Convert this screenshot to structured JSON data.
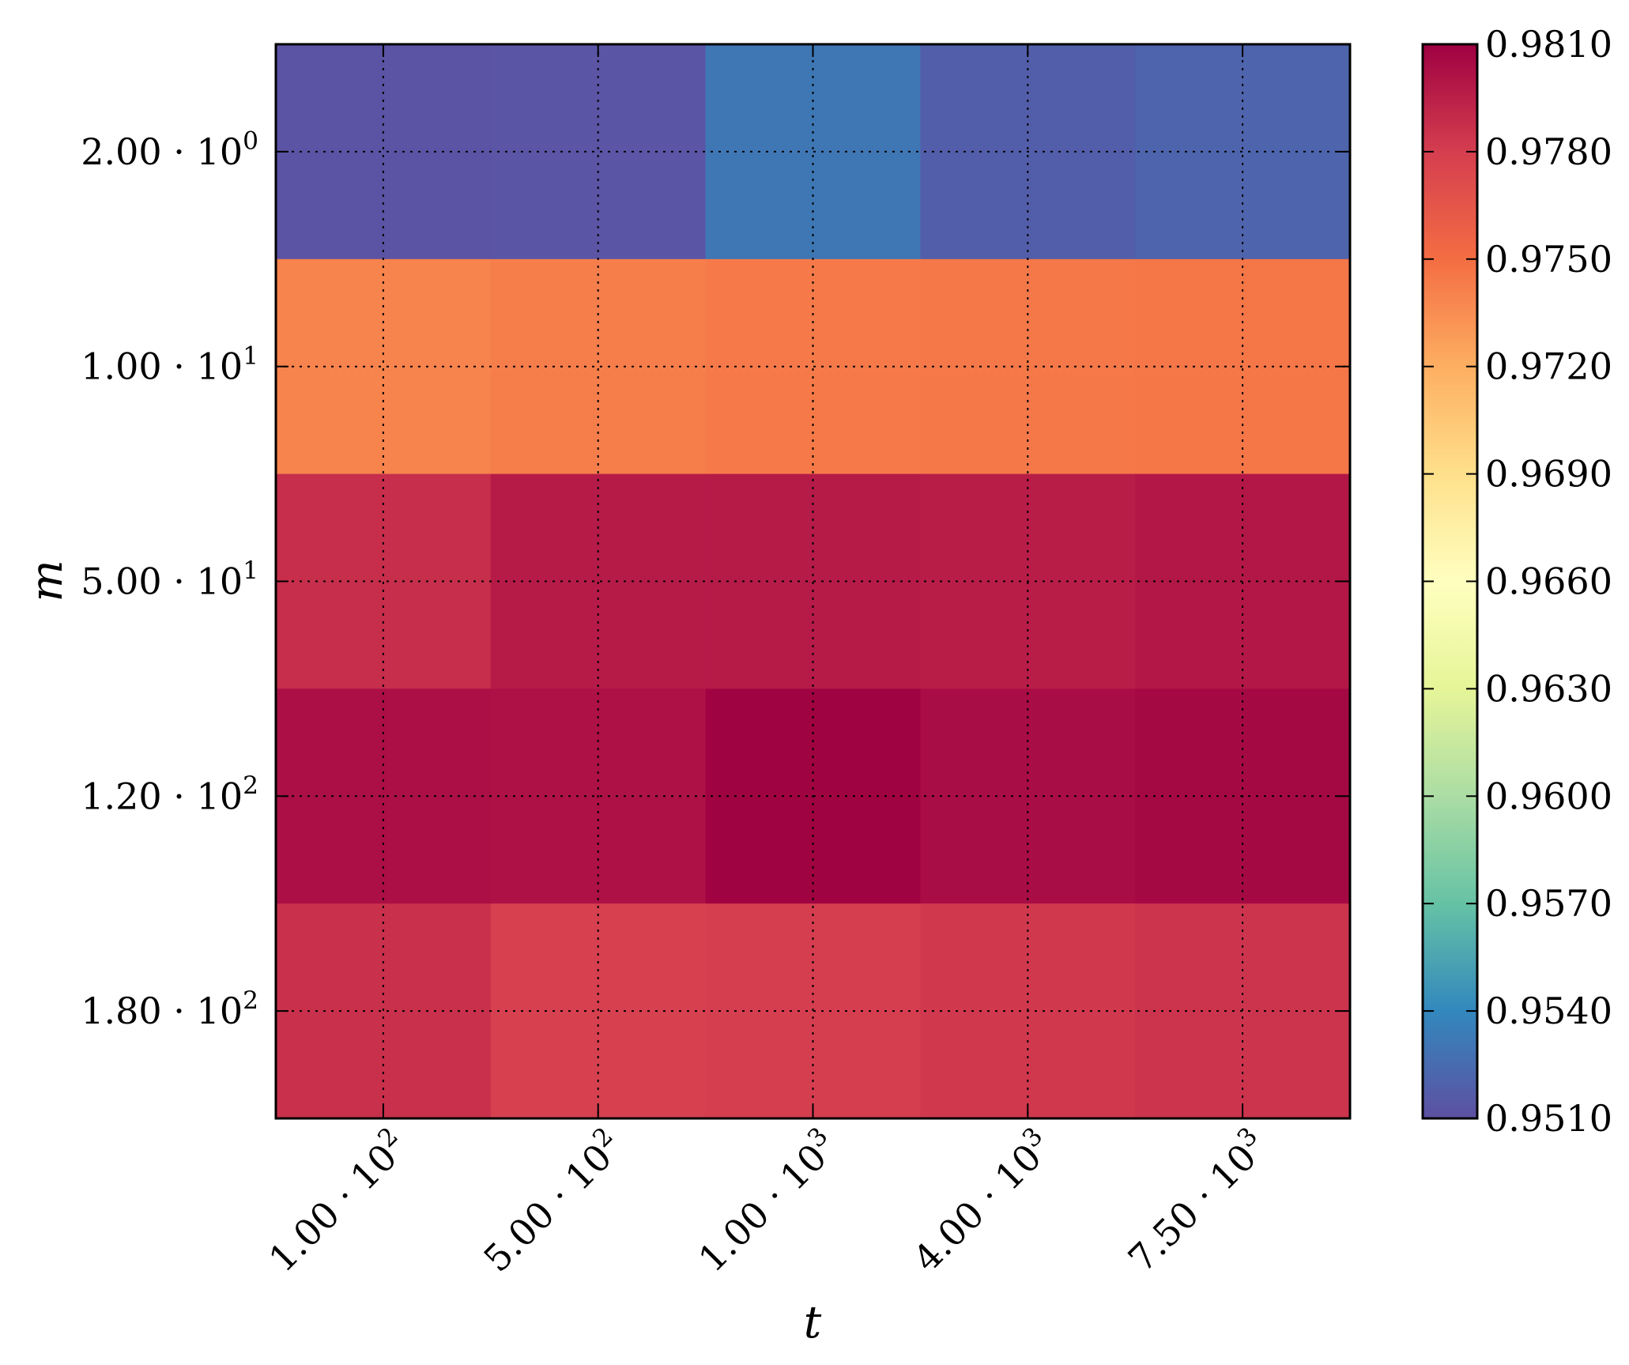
{
  "chart_data": {
    "type": "heatmap",
    "xlabel": "t",
    "ylabel": "m",
    "x_categories": [
      {
        "mantissa": "1.00",
        "exponent": "2"
      },
      {
        "mantissa": "5.00",
        "exponent": "2"
      },
      {
        "mantissa": "1.00",
        "exponent": "3"
      },
      {
        "mantissa": "4.00",
        "exponent": "3"
      },
      {
        "mantissa": "7.50",
        "exponent": "3"
      }
    ],
    "y_categories": [
      {
        "mantissa": "2.00",
        "exponent": "0"
      },
      {
        "mantissa": "1.00",
        "exponent": "1"
      },
      {
        "mantissa": "5.00",
        "exponent": "1"
      },
      {
        "mantissa": "1.20",
        "exponent": "2"
      },
      {
        "mantissa": "1.80",
        "exponent": "2"
      }
    ],
    "values": [
      [
        0.9512,
        0.9513,
        0.9531,
        0.9518,
        0.9521
      ],
      [
        0.974,
        0.9742,
        0.9744,
        0.9745,
        0.9746
      ],
      [
        0.9788,
        0.9797,
        0.9797,
        0.9796,
        0.9799
      ],
      [
        0.9803,
        0.9802,
        0.9809,
        0.9804,
        0.9806
      ],
      [
        0.9787,
        0.9779,
        0.978,
        0.9783,
        0.9785
      ]
    ],
    "colorbar": {
      "vmin": 0.951,
      "vmax": 0.981,
      "ticks": [
        "0.9510",
        "0.9540",
        "0.9570",
        "0.9600",
        "0.9630",
        "0.9660",
        "0.9690",
        "0.9720",
        "0.9750",
        "0.9780",
        "0.9810"
      ],
      "colormap": "Spectral_r"
    },
    "grid": true
  }
}
